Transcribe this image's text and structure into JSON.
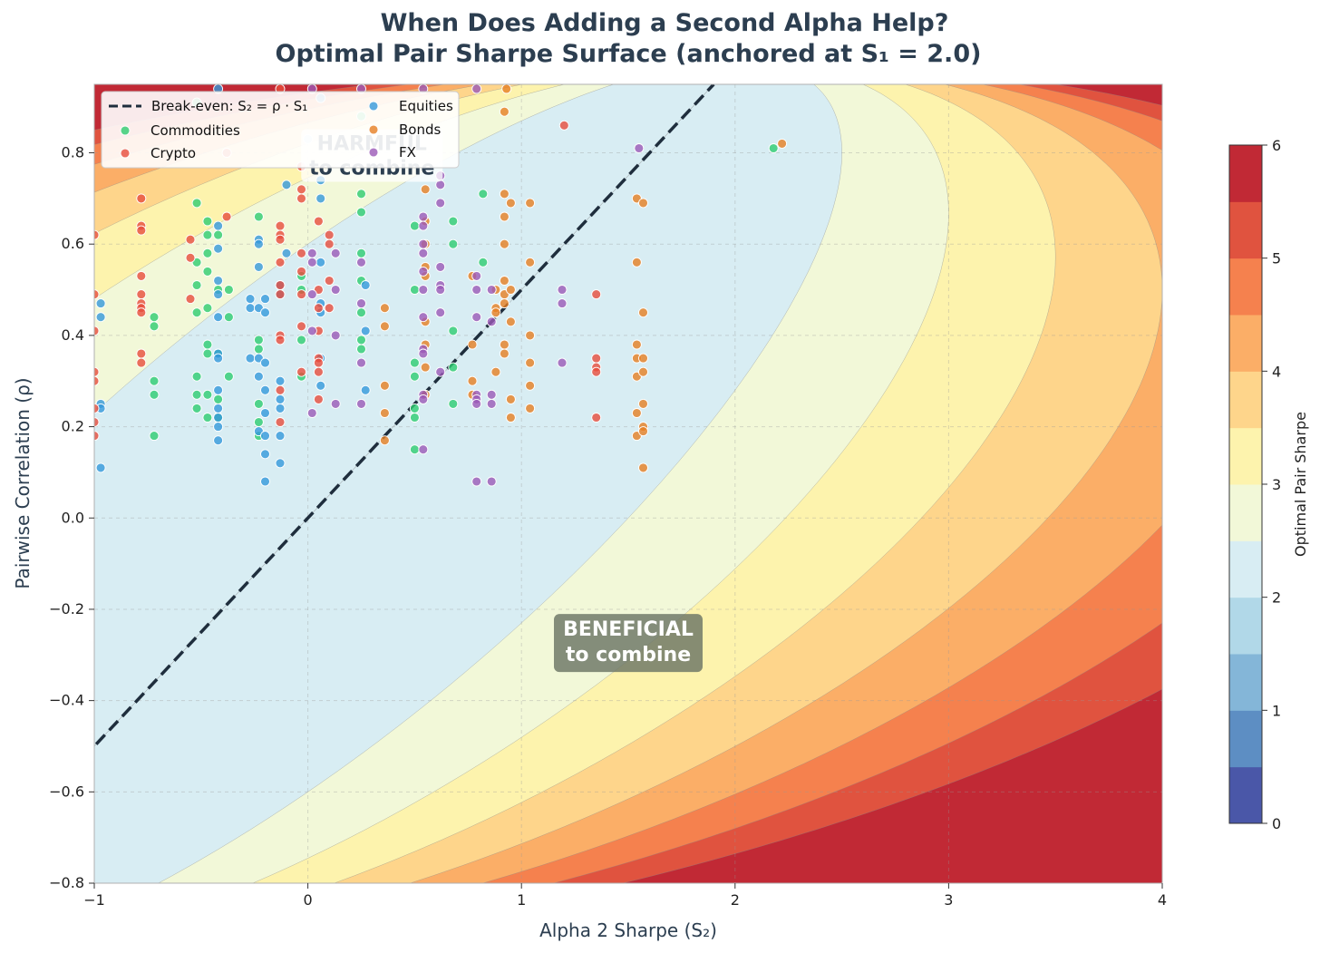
{
  "chart_data": {
    "type": "contour+scatter",
    "title_line1": "When Does Adding a Second Alpha Help?",
    "title_line2": "Optimal Pair Sharpe Surface (anchored at S₁ = 2.0)",
    "xlabel": "Alpha 2 Sharpe (S₂)",
    "ylabel": "Pairwise Correlation (ρ)",
    "colorbar_label": "Optimal Pair Sharpe",
    "xlim": [
      -1,
      4
    ],
    "ylim": [
      -0.8,
      0.95
    ],
    "xticks": [
      -1,
      0,
      1,
      2,
      3,
      4
    ],
    "yticks": [
      -0.8,
      -0.6,
      -0.4,
      -0.2,
      0.0,
      0.2,
      0.4,
      0.6,
      0.8
    ],
    "x_tick_labels": [
      "−1",
      "0",
      "1",
      "2",
      "3",
      "4"
    ],
    "y_tick_labels": [
      "−0.8",
      "−0.6",
      "−0.4",
      "−0.2",
      "0.0",
      "0.2",
      "0.4",
      "0.6",
      "0.8"
    ],
    "colorbar_ticks": [
      0,
      1,
      2,
      3,
      4,
      5,
      6
    ],
    "colorbar_tick_labels": [
      "0",
      "1",
      "2",
      "3",
      "4",
      "5",
      "6"
    ],
    "contour_levels": [
      0,
      0.5,
      1,
      1.5,
      2,
      2.5,
      3,
      3.5,
      4,
      4.5,
      5,
      5.5,
      6
    ],
    "contour_colors": [
      "#4a57a8",
      "#5d8ec3",
      "#84b6d8",
      "#b1d8e8",
      "#d8edf3",
      "#f2f8d8",
      "#fdf3ad",
      "#fed58b",
      "#fbae67",
      "#f5814e",
      "#e0533f",
      "#c12935"
    ],
    "anchor_s1": 2.0,
    "break_even_line": {
      "label": "Break-even: S₂ = ρ · S₁",
      "slope": 2.0
    },
    "annotations": [
      {
        "text_line1": "HARMFUL",
        "text_line2": "to combine",
        "x": 0.3,
        "y": 0.8
      },
      {
        "text_line1": "BENEFICIAL",
        "text_line2": "to combine",
        "x": 1.5,
        "y": -0.27
      }
    ],
    "legend_position": "upper-left",
    "grid": true,
    "series": [
      {
        "name": "Commodities",
        "color": "#2ecc71",
        "points": [
          [
            -0.72,
            0.44
          ],
          [
            -0.72,
            0.42
          ],
          [
            -0.72,
            0.3
          ],
          [
            -0.72,
            0.27
          ],
          [
            -0.72,
            0.18
          ],
          [
            -0.52,
            0.69
          ],
          [
            -0.52,
            0.56
          ],
          [
            -0.52,
            0.51
          ],
          [
            -0.52,
            0.45
          ],
          [
            -0.52,
            0.31
          ],
          [
            -0.52,
            0.27
          ],
          [
            -0.52,
            0.24
          ],
          [
            -0.47,
            0.65
          ],
          [
            -0.47,
            0.62
          ],
          [
            -0.47,
            0.58
          ],
          [
            -0.47,
            0.54
          ],
          [
            -0.47,
            0.46
          ],
          [
            -0.47,
            0.38
          ],
          [
            -0.47,
            0.36
          ],
          [
            -0.47,
            0.27
          ],
          [
            -0.47,
            0.22
          ],
          [
            -0.42,
            0.62
          ],
          [
            -0.42,
            0.5
          ],
          [
            -0.42,
            0.36
          ],
          [
            -0.42,
            0.26
          ],
          [
            -0.42,
            0.22
          ],
          [
            -0.37,
            0.5
          ],
          [
            -0.37,
            0.44
          ],
          [
            -0.37,
            0.31
          ],
          [
            -0.23,
            0.66
          ],
          [
            -0.23,
            0.39
          ],
          [
            -0.23,
            0.37
          ],
          [
            -0.23,
            0.25
          ],
          [
            -0.23,
            0.21
          ],
          [
            -0.23,
            0.18
          ],
          [
            -0.03,
            0.53
          ],
          [
            -0.03,
            0.5
          ],
          [
            -0.03,
            0.39
          ],
          [
            -0.03,
            0.31
          ],
          [
            0.25,
            0.71
          ],
          [
            0.25,
            0.67
          ],
          [
            0.25,
            0.58
          ],
          [
            0.25,
            0.52
          ],
          [
            0.25,
            0.45
          ],
          [
            0.25,
            0.39
          ],
          [
            0.25,
            0.37
          ],
          [
            0.25,
            0.88
          ],
          [
            0.5,
            0.64
          ],
          [
            0.5,
            0.5
          ],
          [
            0.5,
            0.34
          ],
          [
            0.5,
            0.31
          ],
          [
            0.5,
            0.24
          ],
          [
            0.5,
            0.22
          ],
          [
            0.5,
            0.15
          ],
          [
            0.68,
            0.65
          ],
          [
            0.68,
            0.6
          ],
          [
            0.68,
            0.41
          ],
          [
            0.68,
            0.33
          ],
          [
            0.68,
            0.25
          ],
          [
            0.82,
            0.71
          ],
          [
            0.82,
            0.56
          ],
          [
            2.18,
            0.81
          ],
          [
            -0.52,
            0.91
          ]
        ]
      },
      {
        "name": "Equities",
        "color": "#3498db",
        "points": [
          [
            -0.97,
            0.47
          ],
          [
            -0.97,
            0.44
          ],
          [
            -0.97,
            0.25
          ],
          [
            -0.97,
            0.24
          ],
          [
            -0.97,
            0.11
          ],
          [
            -0.42,
            0.64
          ],
          [
            -0.42,
            0.59
          ],
          [
            -0.42,
            0.52
          ],
          [
            -0.42,
            0.49
          ],
          [
            -0.42,
            0.44
          ],
          [
            -0.42,
            0.36
          ],
          [
            -0.42,
            0.35
          ],
          [
            -0.42,
            0.28
          ],
          [
            -0.42,
            0.24
          ],
          [
            -0.42,
            0.22
          ],
          [
            -0.42,
            0.2
          ],
          [
            -0.42,
            0.17
          ],
          [
            -0.42,
            0.94
          ],
          [
            -0.27,
            0.48
          ],
          [
            -0.27,
            0.46
          ],
          [
            -0.27,
            0.35
          ],
          [
            -0.23,
            0.61
          ],
          [
            -0.23,
            0.6
          ],
          [
            -0.23,
            0.55
          ],
          [
            -0.23,
            0.46
          ],
          [
            -0.23,
            0.35
          ],
          [
            -0.23,
            0.31
          ],
          [
            -0.23,
            0.19
          ],
          [
            -0.2,
            0.48
          ],
          [
            -0.2,
            0.45
          ],
          [
            -0.2,
            0.34
          ],
          [
            -0.2,
            0.28
          ],
          [
            -0.2,
            0.23
          ],
          [
            -0.2,
            0.18
          ],
          [
            -0.2,
            0.14
          ],
          [
            -0.2,
            0.08
          ],
          [
            -0.13,
            0.51
          ],
          [
            -0.13,
            0.49
          ],
          [
            -0.13,
            0.3
          ],
          [
            -0.13,
            0.26
          ],
          [
            -0.13,
            0.24
          ],
          [
            -0.13,
            0.18
          ],
          [
            -0.13,
            0.12
          ],
          [
            -0.1,
            0.73
          ],
          [
            -0.1,
            0.58
          ],
          [
            0.06,
            0.74
          ],
          [
            0.06,
            0.7
          ],
          [
            0.06,
            0.56
          ],
          [
            0.06,
            0.47
          ],
          [
            0.06,
            0.45
          ],
          [
            0.06,
            0.35
          ],
          [
            0.06,
            0.29
          ],
          [
            0.06,
            0.92
          ],
          [
            0.27,
            0.51
          ],
          [
            0.27,
            0.41
          ],
          [
            0.27,
            0.28
          ],
          [
            0.0,
            0.83
          ]
        ]
      },
      {
        "name": "Crypto",
        "color": "#e74c3c",
        "points": [
          [
            -1.0,
            0.62
          ],
          [
            -1.0,
            0.49
          ],
          [
            -1.0,
            0.41
          ],
          [
            -1.0,
            0.32
          ],
          [
            -1.0,
            0.3
          ],
          [
            -1.0,
            0.24
          ],
          [
            -1.0,
            0.21
          ],
          [
            -1.0,
            0.18
          ],
          [
            -0.78,
            0.7
          ],
          [
            -0.78,
            0.64
          ],
          [
            -0.78,
            0.63
          ],
          [
            -0.78,
            0.53
          ],
          [
            -0.78,
            0.49
          ],
          [
            -0.78,
            0.47
          ],
          [
            -0.78,
            0.46
          ],
          [
            -0.78,
            0.45
          ],
          [
            -0.78,
            0.36
          ],
          [
            -0.78,
            0.34
          ],
          [
            -0.55,
            0.61
          ],
          [
            -0.55,
            0.57
          ],
          [
            -0.55,
            0.48
          ],
          [
            -0.38,
            0.8
          ],
          [
            -0.38,
            0.66
          ],
          [
            -0.13,
            0.94
          ],
          [
            -0.13,
            0.64
          ],
          [
            -0.13,
            0.62
          ],
          [
            -0.13,
            0.61
          ],
          [
            -0.13,
            0.56
          ],
          [
            -0.13,
            0.51
          ],
          [
            -0.13,
            0.49
          ],
          [
            -0.13,
            0.4
          ],
          [
            -0.13,
            0.39
          ],
          [
            -0.13,
            0.28
          ],
          [
            -0.13,
            0.21
          ],
          [
            -0.03,
            0.77
          ],
          [
            -0.03,
            0.72
          ],
          [
            -0.03,
            0.7
          ],
          [
            -0.03,
            0.58
          ],
          [
            -0.03,
            0.54
          ],
          [
            -0.03,
            0.49
          ],
          [
            -0.03,
            0.42
          ],
          [
            -0.03,
            0.32
          ],
          [
            0.05,
            0.65
          ],
          [
            0.05,
            0.5
          ],
          [
            0.05,
            0.46
          ],
          [
            0.05,
            0.41
          ],
          [
            0.05,
            0.35
          ],
          [
            0.05,
            0.34
          ],
          [
            0.05,
            0.32
          ],
          [
            0.05,
            0.26
          ],
          [
            0.1,
            0.62
          ],
          [
            0.1,
            0.6
          ],
          [
            0.1,
            0.52
          ],
          [
            0.1,
            0.46
          ],
          [
            1.2,
            0.86
          ],
          [
            1.35,
            0.49
          ],
          [
            1.35,
            0.35
          ],
          [
            1.35,
            0.33
          ],
          [
            1.35,
            0.32
          ],
          [
            1.35,
            0.22
          ]
        ]
      },
      {
        "name": "Bonds",
        "color": "#e67e22",
        "points": [
          [
            0.36,
            0.46
          ],
          [
            0.36,
            0.42
          ],
          [
            0.36,
            0.29
          ],
          [
            0.36,
            0.23
          ],
          [
            0.36,
            0.17
          ],
          [
            0.55,
            0.72
          ],
          [
            0.55,
            0.65
          ],
          [
            0.55,
            0.6
          ],
          [
            0.55,
            0.55
          ],
          [
            0.55,
            0.53
          ],
          [
            0.55,
            0.43
          ],
          [
            0.55,
            0.38
          ],
          [
            0.55,
            0.33
          ],
          [
            0.55,
            0.27
          ],
          [
            0.77,
            0.53
          ],
          [
            0.77,
            0.38
          ],
          [
            0.77,
            0.3
          ],
          [
            0.77,
            0.27
          ],
          [
            0.88,
            0.5
          ],
          [
            0.88,
            0.46
          ],
          [
            0.88,
            0.45
          ],
          [
            0.88,
            0.32
          ],
          [
            0.92,
            0.71
          ],
          [
            0.92,
            0.66
          ],
          [
            0.92,
            0.6
          ],
          [
            0.92,
            0.52
          ],
          [
            0.92,
            0.49
          ],
          [
            0.92,
            0.47
          ],
          [
            0.92,
            0.38
          ],
          [
            0.92,
            0.36
          ],
          [
            0.92,
            0.89
          ],
          [
            0.93,
            0.94
          ],
          [
            0.95,
            0.69
          ],
          [
            0.95,
            0.5
          ],
          [
            0.95,
            0.43
          ],
          [
            0.95,
            0.26
          ],
          [
            0.95,
            0.22
          ],
          [
            1.04,
            0.69
          ],
          [
            1.04,
            0.56
          ],
          [
            1.04,
            0.4
          ],
          [
            1.04,
            0.34
          ],
          [
            1.04,
            0.29
          ],
          [
            1.04,
            0.24
          ],
          [
            1.54,
            0.7
          ],
          [
            1.54,
            0.56
          ],
          [
            1.54,
            0.38
          ],
          [
            1.54,
            0.35
          ],
          [
            1.54,
            0.31
          ],
          [
            1.54,
            0.23
          ],
          [
            1.54,
            0.18
          ],
          [
            1.57,
            0.69
          ],
          [
            1.57,
            0.45
          ],
          [
            1.57,
            0.35
          ],
          [
            1.57,
            0.32
          ],
          [
            1.57,
            0.25
          ],
          [
            1.57,
            0.2
          ],
          [
            1.57,
            0.19
          ],
          [
            1.57,
            0.11
          ],
          [
            2.22,
            0.82
          ]
        ]
      },
      {
        "name": "FX",
        "color": "#9b59b6",
        "points": [
          [
            0.02,
            0.94
          ],
          [
            0.02,
            0.58
          ],
          [
            0.02,
            0.56
          ],
          [
            0.02,
            0.49
          ],
          [
            0.02,
            0.41
          ],
          [
            0.02,
            0.23
          ],
          [
            0.13,
            0.58
          ],
          [
            0.13,
            0.5
          ],
          [
            0.13,
            0.4
          ],
          [
            0.13,
            0.25
          ],
          [
            0.25,
            0.56
          ],
          [
            0.25,
            0.47
          ],
          [
            0.25,
            0.34
          ],
          [
            0.25,
            0.25
          ],
          [
            0.25,
            0.94
          ],
          [
            0.54,
            0.94
          ],
          [
            0.54,
            0.66
          ],
          [
            0.54,
            0.64
          ],
          [
            0.54,
            0.6
          ],
          [
            0.54,
            0.58
          ],
          [
            0.54,
            0.54
          ],
          [
            0.54,
            0.5
          ],
          [
            0.54,
            0.44
          ],
          [
            0.54,
            0.37
          ],
          [
            0.54,
            0.36
          ],
          [
            0.54,
            0.27
          ],
          [
            0.54,
            0.26
          ],
          [
            0.54,
            0.15
          ],
          [
            0.62,
            0.75
          ],
          [
            0.62,
            0.73
          ],
          [
            0.62,
            0.69
          ],
          [
            0.62,
            0.55
          ],
          [
            0.62,
            0.51
          ],
          [
            0.62,
            0.5
          ],
          [
            0.62,
            0.45
          ],
          [
            0.62,
            0.32
          ],
          [
            0.79,
            0.94
          ],
          [
            0.79,
            0.53
          ],
          [
            0.79,
            0.5
          ],
          [
            0.79,
            0.44
          ],
          [
            0.79,
            0.27
          ],
          [
            0.79,
            0.26
          ],
          [
            0.79,
            0.25
          ],
          [
            0.79,
            0.08
          ],
          [
            0.86,
            0.5
          ],
          [
            0.86,
            0.43
          ],
          [
            0.86,
            0.27
          ],
          [
            0.86,
            0.25
          ],
          [
            0.86,
            0.08
          ],
          [
            1.19,
            0.5
          ],
          [
            1.19,
            0.47
          ],
          [
            1.19,
            0.34
          ],
          [
            1.55,
            0.81
          ]
        ]
      }
    ]
  }
}
